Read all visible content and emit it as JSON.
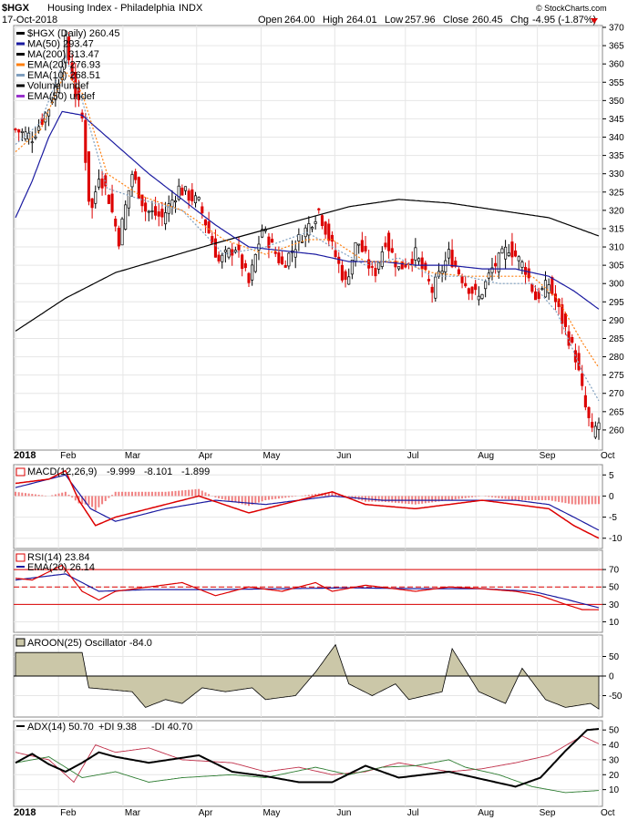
{
  "header": {
    "symbol": "$HGX",
    "name": "Housing Index - Philadelphia",
    "exchange": "INDX",
    "date": "17-Oct-2018",
    "open_label": "Open",
    "open": "264.00",
    "high_label": "High",
    "high": "264.01",
    "low_label": "Low",
    "low": "257.96",
    "close_label": "Close",
    "close": "260.45",
    "chg_label": "Chg",
    "chg": "-4.95 (-1.87%)",
    "watermark": "© StockCharts.com"
  },
  "price_legend": [
    {
      "text": "$HGX (Daily) 260.45",
      "color": "#000000"
    },
    {
      "text": "MA(50) 293.47",
      "color": "#1a1aa0"
    },
    {
      "text": "MA(200) 313.47",
      "color": "#000000"
    },
    {
      "text": "EMA(20) 276.93",
      "color": "#ff7f0e"
    },
    {
      "text": "EMA(10) 268.51",
      "color": "#7f9fbf"
    },
    {
      "text": "Volume undef",
      "color": "#000000"
    },
    {
      "text": "EMA(50) undef",
      "color": "#9932cc"
    }
  ],
  "macd_label": {
    "name": "MACD(12,26,9)",
    "v1": "-9.999",
    "v2": "-8.101",
    "v3": "-1.899"
  },
  "rsi_label": {
    "name": "RSI(14) 23.84",
    "ema": "EMA(20) 26.14"
  },
  "aroon_label": "AROON(25) Oscillator -84.0",
  "adx_label": {
    "name": "ADX(14) 50.70",
    "pdi": "+DI 9.38",
    "mdi": "-DI 40.70"
  },
  "colors": {
    "up": "#000000",
    "down": "#dd0000",
    "ma50": "#1a1aa0",
    "ma200": "#000000",
    "ema20": "#ff7f0e",
    "ema10": "#7f9fbf",
    "aroon_fill": "#cbc7a8",
    "pdi": "#2e7d32",
    "mdi": "#c0304a"
  },
  "chart_data": {
    "type": "line",
    "title": "$HGX Housing Index - Philadelphia INDX",
    "x_months": [
      "2018",
      "Feb",
      "Mar",
      "Apr",
      "May",
      "Jun",
      "Jul",
      "Aug",
      "Sep",
      "Oct"
    ],
    "price_axis": {
      "ylim": [
        255,
        370
      ],
      "ticks": [
        260,
        265,
        270,
        275,
        280,
        285,
        290,
        295,
        300,
        305,
        310,
        315,
        320,
        325,
        330,
        335,
        340,
        345,
        350,
        355,
        360,
        365,
        370
      ]
    },
    "close_keypoints": [
      [
        0,
        342
      ],
      [
        10,
        340
      ],
      [
        20,
        348
      ],
      [
        26,
        356
      ],
      [
        30,
        366
      ],
      [
        36,
        352
      ],
      [
        40,
        345
      ],
      [
        45,
        318
      ],
      [
        50,
        330
      ],
      [
        55,
        325
      ],
      [
        62,
        312
      ],
      [
        70,
        330
      ],
      [
        78,
        320
      ],
      [
        88,
        318
      ],
      [
        98,
        326
      ],
      [
        110,
        322
      ],
      [
        122,
        306
      ],
      [
        132,
        310
      ],
      [
        140,
        300
      ],
      [
        148,
        315
      ],
      [
        160,
        305
      ],
      [
        170,
        312
      ],
      [
        182,
        320
      ],
      [
        190,
        310
      ],
      [
        198,
        300
      ],
      [
        205,
        312
      ],
      [
        215,
        302
      ],
      [
        222,
        312
      ],
      [
        230,
        304
      ],
      [
        240,
        308
      ],
      [
        250,
        298
      ],
      [
        260,
        308
      ],
      [
        270,
        300
      ],
      [
        278,
        296
      ],
      [
        286,
        304
      ],
      [
        296,
        310
      ],
      [
        306,
        304
      ],
      [
        312,
        296
      ],
      [
        320,
        300
      ],
      [
        328,
        290
      ],
      [
        336,
        280
      ],
      [
        342,
        266
      ],
      [
        346,
        259
      ],
      [
        350,
        262
      ]
    ],
    "ma50_keypoints": [
      [
        0,
        318
      ],
      [
        10,
        328
      ],
      [
        20,
        340
      ],
      [
        28,
        347
      ],
      [
        40,
        346
      ],
      [
        60,
        338
      ],
      [
        80,
        330
      ],
      [
        100,
        323
      ],
      [
        120,
        316
      ],
      [
        140,
        310
      ],
      [
        160,
        309
      ],
      [
        180,
        308
      ],
      [
        200,
        306
      ],
      [
        220,
        306
      ],
      [
        240,
        305
      ],
      [
        260,
        305
      ],
      [
        280,
        304
      ],
      [
        300,
        304
      ],
      [
        320,
        302
      ],
      [
        335,
        298
      ],
      [
        350,
        293
      ]
    ],
    "ma200_keypoints": [
      [
        0,
        287
      ],
      [
        30,
        296
      ],
      [
        60,
        303
      ],
      [
        90,
        307
      ],
      [
        120,
        311
      ],
      [
        160,
        316
      ],
      [
        200,
        321
      ],
      [
        230,
        323
      ],
      [
        260,
        322
      ],
      [
        290,
        320
      ],
      [
        320,
        318
      ],
      [
        350,
        313
      ]
    ],
    "ema20_keypoints": [
      [
        0,
        336
      ],
      [
        15,
        342
      ],
      [
        30,
        358
      ],
      [
        40,
        352
      ],
      [
        55,
        330
      ],
      [
        75,
        324
      ],
      [
        100,
        320
      ],
      [
        125,
        312
      ],
      [
        150,
        308
      ],
      [
        175,
        312
      ],
      [
        190,
        312
      ],
      [
        210,
        306
      ],
      [
        230,
        306
      ],
      [
        250,
        303
      ],
      [
        270,
        302
      ],
      [
        290,
        302
      ],
      [
        310,
        302
      ],
      [
        325,
        296
      ],
      [
        340,
        284
      ],
      [
        350,
        277
      ]
    ],
    "ema10_keypoints": [
      [
        0,
        338
      ],
      [
        15,
        344
      ],
      [
        30,
        362
      ],
      [
        40,
        350
      ],
      [
        55,
        326
      ],
      [
        75,
        323
      ],
      [
        100,
        320
      ],
      [
        125,
        308
      ],
      [
        150,
        310
      ],
      [
        175,
        314
      ],
      [
        190,
        310
      ],
      [
        210,
        305
      ],
      [
        230,
        307
      ],
      [
        250,
        302
      ],
      [
        270,
        302
      ],
      [
        290,
        300
      ],
      [
        310,
        300
      ],
      [
        325,
        292
      ],
      [
        340,
        276
      ],
      [
        350,
        268
      ]
    ],
    "macd": {
      "ylim": [
        -12,
        7
      ],
      "ticks": [
        5,
        0,
        -5,
        -10
      ],
      "line_keypoints": [
        [
          0,
          3
        ],
        [
          20,
          4
        ],
        [
          30,
          6
        ],
        [
          38,
          -1
        ],
        [
          48,
          -7
        ],
        [
          60,
          -5
        ],
        [
          80,
          -3
        ],
        [
          110,
          0
        ],
        [
          140,
          -4
        ],
        [
          170,
          -1
        ],
        [
          190,
          1
        ],
        [
          210,
          -2
        ],
        [
          240,
          -3
        ],
        [
          260,
          -2
        ],
        [
          280,
          -1
        ],
        [
          300,
          -2
        ],
        [
          320,
          -3
        ],
        [
          335,
          -7
        ],
        [
          350,
          -10
        ]
      ],
      "signal_keypoints": [
        [
          0,
          2
        ],
        [
          30,
          5
        ],
        [
          45,
          -3
        ],
        [
          60,
          -6
        ],
        [
          90,
          -3
        ],
        [
          120,
          -1
        ],
        [
          150,
          -2
        ],
        [
          190,
          0
        ],
        [
          220,
          -1
        ],
        [
          260,
          -1
        ],
        [
          300,
          -1
        ],
        [
          320,
          -2
        ],
        [
          335,
          -5
        ],
        [
          350,
          -8.1
        ]
      ]
    },
    "rsi": {
      "ylim": [
        0,
        90
      ],
      "ticks": [
        70,
        50,
        30,
        10
      ],
      "overbought": 70,
      "oversold": 30,
      "line_keypoints": [
        [
          0,
          60
        ],
        [
          10,
          58
        ],
        [
          28,
          75
        ],
        [
          40,
          45
        ],
        [
          50,
          35
        ],
        [
          60,
          45
        ],
        [
          80,
          50
        ],
        [
          100,
          55
        ],
        [
          120,
          40
        ],
        [
          140,
          50
        ],
        [
          160,
          45
        ],
        [
          180,
          55
        ],
        [
          190,
          45
        ],
        [
          210,
          52
        ],
        [
          240,
          45
        ],
        [
          260,
          50
        ],
        [
          280,
          48
        ],
        [
          300,
          45
        ],
        [
          315,
          40
        ],
        [
          330,
          30
        ],
        [
          340,
          24
        ],
        [
          350,
          23.8
        ]
      ],
      "ema_keypoints": [
        [
          0,
          58
        ],
        [
          30,
          65
        ],
        [
          50,
          45
        ],
        [
          80,
          47
        ],
        [
          120,
          47
        ],
        [
          160,
          48
        ],
        [
          200,
          49
        ],
        [
          240,
          48
        ],
        [
          280,
          48
        ],
        [
          310,
          45
        ],
        [
          330,
          36
        ],
        [
          350,
          26.1
        ]
      ]
    },
    "aroon": {
      "ylim": [
        -100,
        100
      ],
      "ticks": [
        50,
        0,
        -50
      ],
      "keypoints": [
        [
          0,
          60
        ],
        [
          20,
          60
        ],
        [
          40,
          60
        ],
        [
          44,
          -30
        ],
        [
          70,
          -40
        ],
        [
          78,
          -80
        ],
        [
          90,
          -60
        ],
        [
          100,
          -70
        ],
        [
          112,
          -30
        ],
        [
          126,
          -40
        ],
        [
          142,
          -30
        ],
        [
          150,
          -60
        ],
        [
          168,
          -50
        ],
        [
          180,
          10
        ],
        [
          192,
          80
        ],
        [
          200,
          -20
        ],
        [
          214,
          -50
        ],
        [
          228,
          -20
        ],
        [
          236,
          -60
        ],
        [
          256,
          -40
        ],
        [
          262,
          70
        ],
        [
          278,
          -40
        ],
        [
          294,
          -70
        ],
        [
          304,
          20
        ],
        [
          318,
          -60
        ],
        [
          330,
          -80
        ],
        [
          345,
          -70
        ],
        [
          350,
          -84
        ]
      ]
    },
    "adx": {
      "ylim": [
        0,
        55
      ],
      "ticks": [
        50,
        40,
        30,
        20,
        10
      ],
      "adx_keypoints": [
        [
          0,
          28
        ],
        [
          10,
          34
        ],
        [
          20,
          27
        ],
        [
          30,
          22
        ],
        [
          40,
          28
        ],
        [
          50,
          35
        ],
        [
          60,
          32
        ],
        [
          80,
          28
        ],
        [
          110,
          33
        ],
        [
          130,
          22
        ],
        [
          150,
          19
        ],
        [
          170,
          15
        ],
        [
          190,
          15
        ],
        [
          210,
          26
        ],
        [
          230,
          18
        ],
        [
          260,
          22
        ],
        [
          280,
          17
        ],
        [
          300,
          12
        ],
        [
          315,
          18
        ],
        [
          330,
          36
        ],
        [
          343,
          50
        ],
        [
          350,
          50.7
        ]
      ],
      "pdi_keypoints": [
        [
          0,
          28
        ],
        [
          20,
          32
        ],
        [
          40,
          18
        ],
        [
          60,
          22
        ],
        [
          80,
          15
        ],
        [
          100,
          18
        ],
        [
          130,
          20
        ],
        [
          150,
          18
        ],
        [
          180,
          25
        ],
        [
          200,
          20
        ],
        [
          220,
          25
        ],
        [
          240,
          26
        ],
        [
          260,
          30
        ],
        [
          270,
          25
        ],
        [
          290,
          20
        ],
        [
          310,
          12
        ],
        [
          330,
          8
        ],
        [
          350,
          9.4
        ]
      ],
      "mdi_keypoints": [
        [
          0,
          35
        ],
        [
          20,
          30
        ],
        [
          35,
          15
        ],
        [
          48,
          40
        ],
        [
          60,
          35
        ],
        [
          80,
          38
        ],
        [
          100,
          30
        ],
        [
          130,
          28
        ],
        [
          150,
          22
        ],
        [
          170,
          25
        ],
        [
          190,
          20
        ],
        [
          210,
          22
        ],
        [
          230,
          28
        ],
        [
          260,
          22
        ],
        [
          280,
          24
        ],
        [
          300,
          28
        ],
        [
          320,
          33
        ],
        [
          340,
          46
        ],
        [
          350,
          40.7
        ]
      ]
    }
  }
}
